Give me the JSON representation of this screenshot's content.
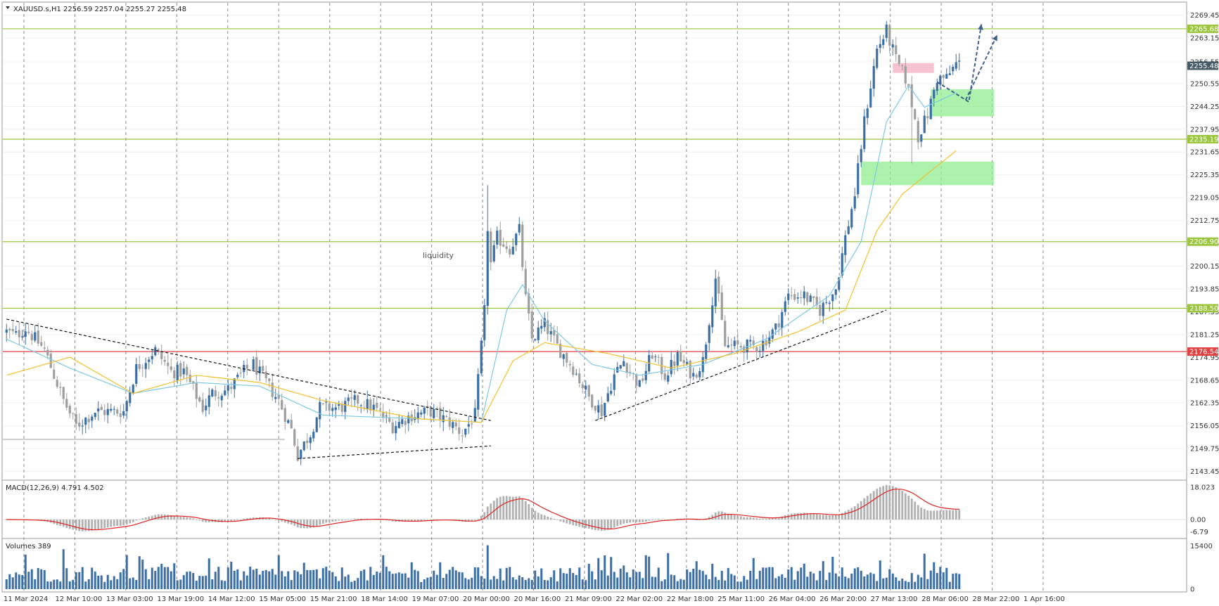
{
  "header": {
    "symbol": "XAUUSD.s,H1",
    "ohlc": "2256.59 2257.04 2255.27 2255.48"
  },
  "annotations": {
    "liquidity": "liquidity"
  },
  "colors": {
    "bull": "#3a6ea5",
    "bear": "#9e9e9e",
    "ema_fast": "#7ec8e3",
    "ema_slow": "#f2c12e",
    "support": "#9bc53d",
    "resistance": "#e04040",
    "zone": "#90ee90",
    "pink_zone": "#f7b8c8",
    "macd_signal": "#e02020",
    "volume": "#3a6ea5",
    "current_price": "#455a64"
  },
  "chart_data": [
    {
      "type": "candlestick",
      "title": "XAUUSD.s,H1",
      "y_ticks": [
        "2269.45",
        "2263.15",
        "2256.55",
        "2250.55",
        "2244.25",
        "2237.95",
        "2231.65",
        "2225.35",
        "2219.05",
        "2212.75",
        "2206.45",
        "2200.15",
        "2193.85",
        "2187.55",
        "2181.25",
        "2174.95",
        "2168.65",
        "2162.35",
        "2156.05",
        "2149.75",
        "2143.45"
      ],
      "ylim": [
        2142.2,
        2271.3
      ],
      "x_ticks": [
        "11 Mar 2024",
        "12 Mar 10:00",
        "13 Mar 03:00",
        "13 Mar 19:00",
        "14 Mar 12:00",
        "15 Mar 05:00",
        "15 Mar 21:00",
        "18 Mar 14:00",
        "19 Mar 07:00",
        "20 Mar 00:00",
        "20 Mar 16:00",
        "21 Mar 09:00",
        "22 Mar 02:00",
        "22 Mar 18:00",
        "25 Mar 11:00",
        "26 Mar 04:00",
        "26 Mar 20:00",
        "27 Mar 13:00",
        "28 Mar 06:00",
        "28 Mar 22:00",
        "1 Apr 16:00"
      ],
      "levels": [
        {
          "value": 2265.68,
          "label": "2265.68",
          "kind": "support"
        },
        {
          "value": 2235.19,
          "label": "2235.19",
          "kind": "support"
        },
        {
          "value": 2206.9,
          "label": "2206.90",
          "kind": "support"
        },
        {
          "value": 2188.5,
          "label": "2188.50",
          "kind": "support"
        },
        {
          "value": 2176.54,
          "label": "2176.54",
          "kind": "resistance"
        }
      ],
      "current_price": {
        "value": 2255.48,
        "label": "2255.48"
      },
      "zones": [
        {
          "bar_start": 292,
          "bar_end": 312,
          "y_low": 2241.5,
          "y_high": 2249.0,
          "kind": "green"
        },
        {
          "bar_start": 270,
          "bar_end": 312,
          "y_low": 2222.5,
          "y_high": 2229.0,
          "kind": "green"
        },
        {
          "bar_start": 280,
          "bar_end": 293,
          "y_low": 2253.5,
          "y_high": 2256.2,
          "kind": "pink"
        }
      ],
      "trendlines": [
        {
          "from": [
            0,
            2185.5
          ],
          "to": [
            153,
            2157.5
          ],
          "style": "dashed"
        },
        {
          "from": [
            92,
            2147.0
          ],
          "to": [
            153,
            2150.5
          ],
          "style": "dashed"
        },
        {
          "from": [
            186,
            2157.5
          ],
          "to": [
            278,
            2188.0
          ],
          "style": "dashed"
        }
      ],
      "projection_arrows": [
        {
          "points": [
            [
              294,
              2251
            ],
            [
              304,
              2245.5
            ],
            [
              304,
              2245.5
            ],
            [
              308,
              2267
            ]
          ]
        },
        {
          "points": [
            [
              303,
              2246
            ],
            [
              313,
              2264
            ]
          ]
        }
      ],
      "anchors": [
        [
          0,
          2182
        ],
        [
          3,
          2181
        ],
        [
          6,
          2183
        ],
        [
          12,
          2177
        ],
        [
          18,
          2163
        ],
        [
          22,
          2156
        ],
        [
          28,
          2160
        ],
        [
          37,
          2160
        ],
        [
          41,
          2172
        ],
        [
          47,
          2177
        ],
        [
          52,
          2171
        ],
        [
          56,
          2171
        ],
        [
          62,
          2161
        ],
        [
          65,
          2165
        ],
        [
          70,
          2166
        ],
        [
          75,
          2171
        ],
        [
          78,
          2173
        ],
        [
          82,
          2168
        ],
        [
          86,
          2163
        ],
        [
          90,
          2155
        ],
        [
          92,
          2148
        ],
        [
          96,
          2154
        ],
        [
          99,
          2161
        ],
        [
          105,
          2161
        ],
        [
          111,
          2163
        ],
        [
          116,
          2161
        ],
        [
          122,
          2156
        ],
        [
          128,
          2159
        ],
        [
          134,
          2160
        ],
        [
          140,
          2157
        ],
        [
          144,
          2154
        ],
        [
          148,
          2159
        ],
        [
          152,
          2197
        ],
        [
          155,
          2208
        ],
        [
          159,
          2205
        ],
        [
          162,
          2210
        ],
        [
          164,
          2191
        ],
        [
          166,
          2180
        ],
        [
          170,
          2184
        ],
        [
          174,
          2178
        ],
        [
          179,
          2172
        ],
        [
          184,
          2164
        ],
        [
          188,
          2160
        ],
        [
          192,
          2170
        ],
        [
          195,
          2174
        ],
        [
          200,
          2167
        ],
        [
          204,
          2176
        ],
        [
          208,
          2170
        ],
        [
          212,
          2175
        ],
        [
          217,
          2170
        ],
        [
          220,
          2174
        ],
        [
          224,
          2197
        ],
        [
          227,
          2178
        ],
        [
          233,
          2178
        ],
        [
          238,
          2178
        ],
        [
          243,
          2183
        ],
        [
          247,
          2192
        ],
        [
          252,
          2192
        ],
        [
          257,
          2188
        ],
        [
          262,
          2194
        ],
        [
          265,
          2208
        ],
        [
          268,
          2220
        ],
        [
          271,
          2240
        ],
        [
          275,
          2260
        ],
        [
          278,
          2265
        ],
        [
          281,
          2257
        ],
        [
          284,
          2252
        ],
        [
          286,
          2245
        ],
        [
          288,
          2236
        ],
        [
          291,
          2242
        ],
        [
          294,
          2252
        ],
        [
          297,
          2252
        ],
        [
          300,
          2256
        ]
      ],
      "ema_fast_anchors": [
        [
          0,
          2180
        ],
        [
          20,
          2172
        ],
        [
          40,
          2165
        ],
        [
          60,
          2168
        ],
        [
          80,
          2167
        ],
        [
          100,
          2159
        ],
        [
          130,
          2158
        ],
        [
          150,
          2157
        ],
        [
          158,
          2188
        ],
        [
          163,
          2195
        ],
        [
          170,
          2185
        ],
        [
          185,
          2173
        ],
        [
          200,
          2170
        ],
        [
          220,
          2173
        ],
        [
          240,
          2180
        ],
        [
          260,
          2192
        ],
        [
          270,
          2207
        ],
        [
          278,
          2240
        ],
        [
          285,
          2250
        ],
        [
          290,
          2244
        ],
        [
          300,
          2248
        ]
      ],
      "ema_slow_anchors": [
        [
          0,
          2170
        ],
        [
          20,
          2175
        ],
        [
          40,
          2165
        ],
        [
          60,
          2170
        ],
        [
          80,
          2168
        ],
        [
          100,
          2163
        ],
        [
          130,
          2158
        ],
        [
          150,
          2157
        ],
        [
          160,
          2174
        ],
        [
          170,
          2179
        ],
        [
          190,
          2176
        ],
        [
          210,
          2172
        ],
        [
          230,
          2176
        ],
        [
          250,
          2182
        ],
        [
          265,
          2188
        ],
        [
          275,
          2210
        ],
        [
          283,
          2220
        ],
        [
          290,
          2225
        ],
        [
          300,
          2232
        ]
      ]
    },
    {
      "type": "macd",
      "title": "MACD(12,26,9) 4.791 4.502",
      "y_ticks": [
        "18.023",
        "0.00",
        "-6.79"
      ],
      "ylim": [
        -9.0,
        20.0
      ]
    },
    {
      "type": "bar",
      "title": "Volumes 389",
      "y_ticks": [
        "15400",
        "0"
      ],
      "ylim": [
        0,
        16500
      ]
    }
  ]
}
